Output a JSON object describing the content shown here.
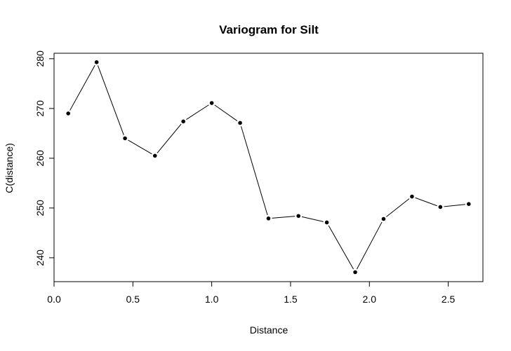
{
  "chart_data": {
    "type": "line",
    "title": "Variogram for Silt",
    "xlabel": "Distance",
    "ylabel": "C(distance)",
    "xlim": [
      0.0,
      2.72
    ],
    "ylim": [
      235.2,
      281.1
    ],
    "x_ticks": [
      0.0,
      0.5,
      1.0,
      1.5,
      2.0,
      2.5
    ],
    "x_tick_labels": [
      "0.0",
      "0.5",
      "1.0",
      "1.5",
      "2.0",
      "2.5"
    ],
    "y_ticks": [
      240,
      250,
      260,
      270,
      280
    ],
    "y_tick_labels": [
      "240",
      "250",
      "260",
      "270",
      "280"
    ],
    "grid": false,
    "legend": false,
    "line_color": "#000000",
    "marker_color": "#000000",
    "series": [
      {
        "x": [
          0.09,
          0.27,
          0.45,
          0.64,
          0.82,
          1.0,
          1.18,
          1.36,
          1.55,
          1.73,
          1.91,
          2.09,
          2.27,
          2.45,
          2.63
        ],
        "y": [
          269.0,
          279.3,
          264.0,
          260.5,
          267.4,
          271.1,
          267.1,
          247.9,
          248.4,
          247.1,
          237.1,
          247.8,
          252.3,
          250.2,
          250.8
        ]
      }
    ]
  }
}
